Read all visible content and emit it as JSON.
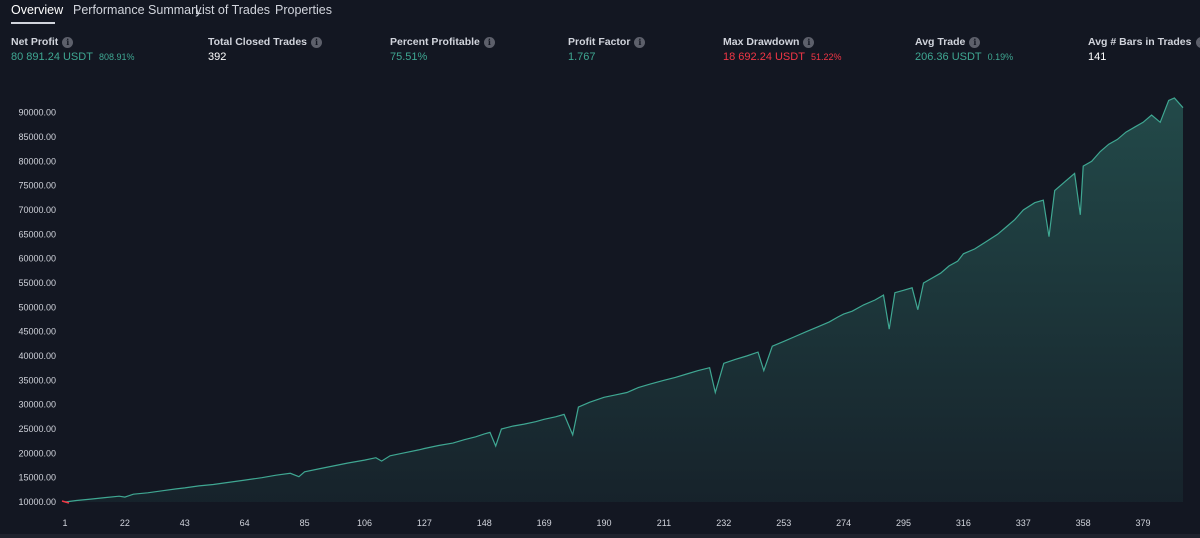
{
  "tabs": [
    {
      "label": "Overview",
      "active": true
    },
    {
      "label": "Performance Summary",
      "active": false
    },
    {
      "label": "List of Trades",
      "active": false
    },
    {
      "label": "Properties",
      "active": false
    }
  ],
  "stats": {
    "net_profit": {
      "label": "Net Profit",
      "value": "80 891.24 USDT",
      "sub": "808.91%"
    },
    "total_closed_trades": {
      "label": "Total Closed Trades",
      "value": "392"
    },
    "percent_profitable": {
      "label": "Percent Profitable",
      "value": "75.51%"
    },
    "profit_factor": {
      "label": "Profit Factor",
      "value": "1.767"
    },
    "max_drawdown": {
      "label": "Max Drawdown",
      "value": "18 692.24 USDT",
      "sub": "51.22%"
    },
    "avg_trade": {
      "label": "Avg Trade",
      "value": "206.36 USDT",
      "sub": "0.19%"
    },
    "avg_bars": {
      "label": "Avg # Bars in Trades",
      "value": "141"
    }
  },
  "colors": {
    "accent_green": "#3fa792",
    "drawdown_red": "#f23645",
    "background": "#131722"
  },
  "chart_data": {
    "type": "area",
    "y_ticks": [
      "90000.00",
      "85000.00",
      "80000.00",
      "75000.00",
      "70000.00",
      "65000.00",
      "60000.00",
      "55000.00",
      "50000.00",
      "45000.00",
      "40000.00",
      "35000.00",
      "30000.00",
      "25000.00",
      "20000.00",
      "15000.00",
      "10000.00"
    ],
    "x_ticks": [
      "1",
      "22",
      "43",
      "64",
      "85",
      "106",
      "127",
      "148",
      "169",
      "190",
      "211",
      "232",
      "253",
      "274",
      "295",
      "316",
      "337",
      "358",
      "379"
    ],
    "ylim": [
      10000,
      93000
    ],
    "xlim": [
      1,
      393
    ],
    "series": [
      {
        "points": [
          [
            1,
            10000
          ],
          [
            5,
            10300
          ],
          [
            10,
            10600
          ],
          [
            15,
            10900
          ],
          [
            20,
            11200
          ],
          [
            22,
            11000
          ],
          [
            25,
            11600
          ],
          [
            30,
            11900
          ],
          [
            35,
            12300
          ],
          [
            40,
            12700
          ],
          [
            43,
            12900
          ],
          [
            48,
            13300
          ],
          [
            53,
            13600
          ],
          [
            58,
            14000
          ],
          [
            64,
            14500
          ],
          [
            70,
            15000
          ],
          [
            75,
            15500
          ],
          [
            80,
            15900
          ],
          [
            83,
            15200
          ],
          [
            85,
            16200
          ],
          [
            90,
            16800
          ],
          [
            95,
            17400
          ],
          [
            100,
            18000
          ],
          [
            106,
            18600
          ],
          [
            110,
            19100
          ],
          [
            112,
            18400
          ],
          [
            115,
            19500
          ],
          [
            120,
            20100
          ],
          [
            125,
            20700
          ],
          [
            127,
            21000
          ],
          [
            132,
            21600
          ],
          [
            137,
            22100
          ],
          [
            141,
            22800
          ],
          [
            145,
            23400
          ],
          [
            148,
            24000
          ],
          [
            150,
            24300
          ],
          [
            152,
            21500
          ],
          [
            154,
            25000
          ],
          [
            158,
            25600
          ],
          [
            162,
            26000
          ],
          [
            166,
            26500
          ],
          [
            169,
            27000
          ],
          [
            173,
            27500
          ],
          [
            176,
            28000
          ],
          [
            179,
            23800
          ],
          [
            181,
            29500
          ],
          [
            185,
            30500
          ],
          [
            190,
            31500
          ],
          [
            194,
            32000
          ],
          [
            198,
            32500
          ],
          [
            202,
            33500
          ],
          [
            206,
            34200
          ],
          [
            211,
            35000
          ],
          [
            215,
            35600
          ],
          [
            219,
            36300
          ],
          [
            223,
            37000
          ],
          [
            227,
            37600
          ],
          [
            229,
            32500
          ],
          [
            232,
            38500
          ],
          [
            236,
            39300
          ],
          [
            240,
            40000
          ],
          [
            244,
            40800
          ],
          [
            246,
            37000
          ],
          [
            249,
            42000
          ],
          [
            253,
            43000
          ],
          [
            257,
            44000
          ],
          [
            261,
            45000
          ],
          [
            265,
            46000
          ],
          [
            269,
            47000
          ],
          [
            272,
            48000
          ],
          [
            274,
            48600
          ],
          [
            277,
            49200
          ],
          [
            281,
            50500
          ],
          [
            285,
            51500
          ],
          [
            288,
            52500
          ],
          [
            290,
            45500
          ],
          [
            292,
            53000
          ],
          [
            295,
            53500
          ],
          [
            298,
            54000
          ],
          [
            300,
            49500
          ],
          [
            302,
            55000
          ],
          [
            305,
            56000
          ],
          [
            308,
            57000
          ],
          [
            311,
            58500
          ],
          [
            314,
            59500
          ],
          [
            316,
            61000
          ],
          [
            320,
            62000
          ],
          [
            324,
            63500
          ],
          [
            328,
            65000
          ],
          [
            331,
            66500
          ],
          [
            334,
            68000
          ],
          [
            337,
            70000
          ],
          [
            341,
            71500
          ],
          [
            344,
            72000
          ],
          [
            346,
            64500
          ],
          [
            348,
            74000
          ],
          [
            352,
            76000
          ],
          [
            355,
            77500
          ],
          [
            357,
            69000
          ],
          [
            358,
            79000
          ],
          [
            361,
            80000
          ],
          [
            364,
            82000
          ],
          [
            367,
            83500
          ],
          [
            370,
            84500
          ],
          [
            373,
            86000
          ],
          [
            376,
            87000
          ],
          [
            379,
            88000
          ],
          [
            382,
            89500
          ],
          [
            385,
            88000
          ],
          [
            388,
            92500
          ],
          [
            390,
            93000
          ],
          [
            393,
            91000
          ]
        ]
      }
    ]
  }
}
